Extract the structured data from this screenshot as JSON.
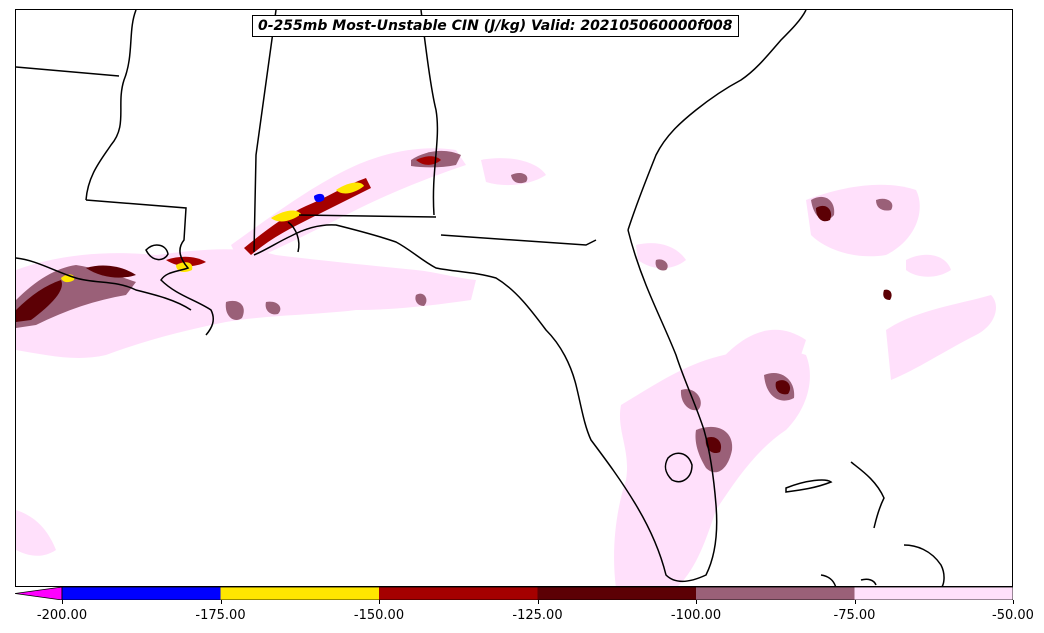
{
  "map": {
    "title": "0-255mb Most-Unstable CIN (J/kg) Valid: 202105060000f008",
    "region": "Southeastern United States, Florida, Gulf of Mexico",
    "colors": {
      "below_min": "#ff00ff",
      "c1": "#0000ff",
      "c2": "#ffe600",
      "c3": "#a50000",
      "c4": "#5c0005",
      "c5": "#9a6078",
      "c6": "#ffe0fb"
    }
  },
  "colorbar": {
    "ticks": [
      "-200.00",
      "-175.00",
      "-150.00",
      "-125.00",
      "-100.00",
      "-75.00",
      "-50.00"
    ],
    "bins": [
      {
        "from": -200,
        "to": -175,
        "color": "#0000ff"
      },
      {
        "from": -175,
        "to": -150,
        "color": "#ffe600"
      },
      {
        "from": -150,
        "to": -125,
        "color": "#a50000"
      },
      {
        "from": -125,
        "to": -100,
        "color": "#5c0005"
      },
      {
        "from": -100,
        "to": -75,
        "color": "#9a6078"
      },
      {
        "from": -75,
        "to": -50,
        "color": "#ffe0fb"
      }
    ],
    "extend": "min"
  }
}
